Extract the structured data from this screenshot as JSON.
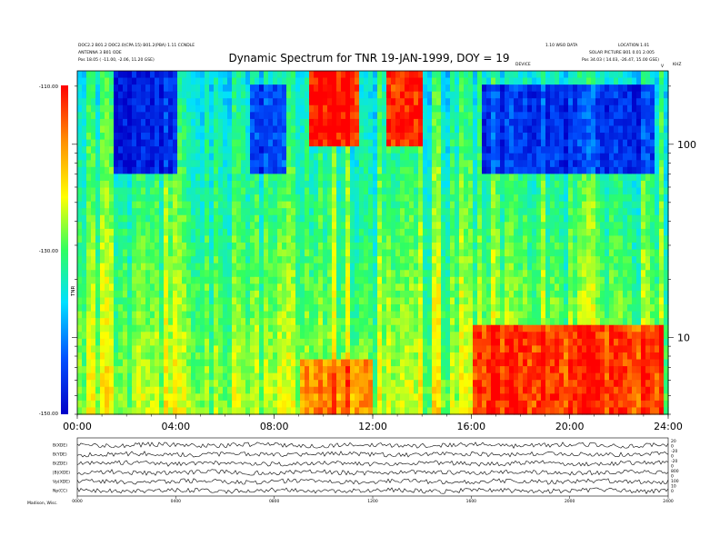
{
  "header": {
    "title": "Dynamic Spectrum for TNR 19-JAN-1999, DOY = 19",
    "left_line1": "DOC2.2  B01.2  DOC2.0(CPA.15)  B01.2(PBA)  1.11  CCNDLE",
    "left_line2": "ANTENNA 3  B01  ODE",
    "left_line3": "Pos    18.05 ( -11.00, -2.06, 11.20 GSE)",
    "right_line1": "1.10  WSO  DATA",
    "right_line2": "LOCATION  1.01",
    "right_line3": "SOLAR  PICTURE  B01  0.01  2.005",
    "right_line4": "Pos    34.03 ( 14.03, -26.47, 15.00 GSE)",
    "right_top_tag": "DEVICE",
    "right_top_tag2": "KHZ",
    "right_marker": "V"
  },
  "colorbar": {
    "ticks": [
      "-110.00",
      "-130.00",
      "-150.00"
    ],
    "unit_label": "TNR"
  },
  "chart_data": {
    "type": "heatmap",
    "title": "Dynamic Spectrum for TNR 19-JAN-1999, DOY = 19",
    "xlabel": "",
    "ylabel": "",
    "x_range_hours": [
      0,
      24
    ],
    "x_ticks": [
      "00:00",
      "04:00",
      "08:00",
      "12:00",
      "16:00",
      "20:00",
      "24:00"
    ],
    "y_scale": "log",
    "y_ticks": [
      10,
      100
    ],
    "y_unit": "kHz",
    "y_range": [
      4,
      240
    ],
    "color_scale_db": [
      -150,
      -110
    ],
    "colormap": [
      "#0000c8",
      "#0050ff",
      "#00e0ff",
      "#30ff60",
      "#ffff00",
      "#ff9000",
      "#ff0000"
    ],
    "features": [
      {
        "label": "quiet",
        "x_hours": [
          1.5,
          4.0
        ],
        "y_khz": [
          70,
          240
        ],
        "level_db": -147
      },
      {
        "label": "quiet",
        "x_hours": [
          7.0,
          8.5
        ],
        "y_khz": [
          70,
          200
        ],
        "level_db": -144
      },
      {
        "label": "quiet",
        "x_hours": [
          16.5,
          23.5
        ],
        "y_khz": [
          70,
          200
        ],
        "level_db": -145
      },
      {
        "label": "burst",
        "x_hours": [
          9.5,
          11.5
        ],
        "y_khz": [
          100,
          240
        ],
        "level_db": -110
      },
      {
        "label": "burst",
        "x_hours": [
          12.5,
          14.0
        ],
        "y_khz": [
          100,
          240
        ],
        "level_db": -112
      },
      {
        "label": "burst",
        "x_hours": [
          16.0,
          23.8
        ],
        "y_khz": [
          4,
          12
        ],
        "level_db": -112
      },
      {
        "label": "burst",
        "x_hours": [
          9.0,
          12.0
        ],
        "y_khz": [
          4,
          8
        ],
        "level_db": -116
      }
    ]
  },
  "bottom_panel": {
    "row_labels": [
      "B(XDE)",
      "B(YDE)",
      "B(ZDE)",
      "|B|(XDE)",
      "Vp(XDE)",
      "Np(CC)"
    ],
    "right_values": [
      "20",
      "0",
      "-20",
      "0",
      "-20",
      "0",
      "800",
      "0",
      "100",
      "10",
      "0"
    ],
    "x_ticks": [
      "0000",
      "0400",
      "0800",
      "1200",
      "1600",
      "2000",
      "2400"
    ],
    "footer": "Madison, Wisc."
  }
}
